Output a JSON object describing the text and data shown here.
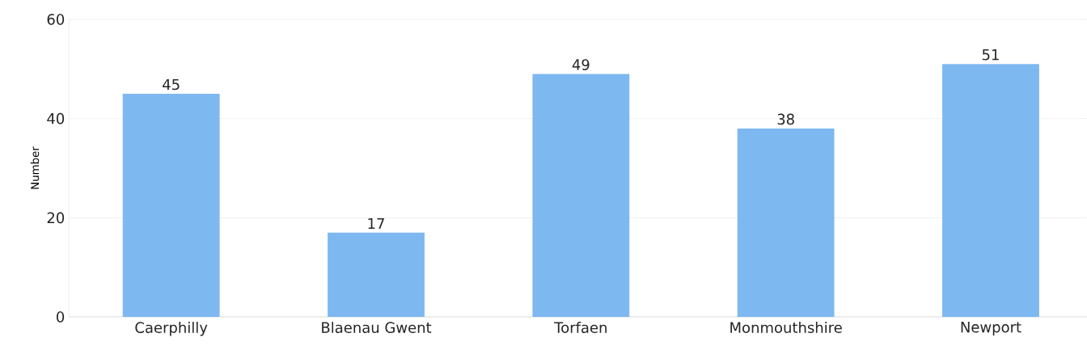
{
  "chart_data": {
    "type": "bar",
    "ylabel": "Number",
    "categories": [
      "Caerphilly",
      "Blaenau Gwent",
      "Torfaen",
      "Monmouthshire",
      "Newport"
    ],
    "values": [
      45,
      17,
      49,
      38,
      51
    ],
    "color": "#7eb8f0",
    "ylim": [
      0,
      60
    ],
    "yticks": [
      0,
      20,
      40,
      60
    ],
    "grid": "y",
    "data_labels": true
  }
}
